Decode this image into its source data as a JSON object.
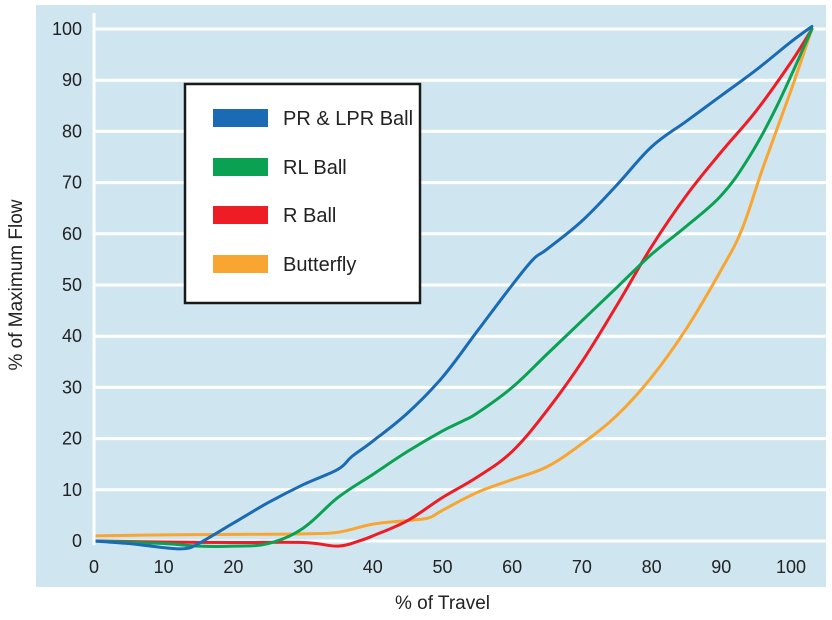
{
  "chart_data": {
    "type": "line",
    "title": "",
    "xlabel": "% of Travel",
    "ylabel": "% of Maximum Flow",
    "xlim": [
      0,
      104
    ],
    "ylim": [
      0,
      100
    ],
    "x_ticks": [
      0,
      10,
      20,
      30,
      40,
      50,
      60,
      70,
      80,
      90,
      100
    ],
    "y_ticks": [
      0,
      10,
      20,
      30,
      40,
      50,
      60,
      70,
      80,
      90,
      100
    ],
    "grid": "horizontal",
    "background_color": "#cfe6f1",
    "legend_position": "upper-left",
    "series": [
      {
        "name": "PR & LPR Ball",
        "color": "#1a6bb3",
        "points": [
          [
            0,
            0
          ],
          [
            5,
            -0.5
          ],
          [
            10,
            -1.3
          ],
          [
            13,
            -1.5
          ],
          [
            15,
            -0.5
          ],
          [
            20,
            3.5
          ],
          [
            25,
            7.5
          ],
          [
            30,
            11
          ],
          [
            35,
            14
          ],
          [
            37,
            16.5
          ],
          [
            40,
            19.5
          ],
          [
            45,
            25
          ],
          [
            50,
            32
          ],
          [
            55,
            41
          ],
          [
            60,
            50
          ],
          [
            63,
            55
          ],
          [
            65,
            57
          ],
          [
            70,
            62.5
          ],
          [
            75,
            69.5
          ],
          [
            80,
            77
          ],
          [
            85,
            82
          ],
          [
            90,
            87
          ],
          [
            95,
            92
          ],
          [
            100,
            97.5
          ],
          [
            103,
            100.5
          ]
        ]
      },
      {
        "name": "RL Ball",
        "color": "#0aa152",
        "points": [
          [
            0,
            0
          ],
          [
            10,
            -0.5
          ],
          [
            15,
            -1
          ],
          [
            20,
            -1
          ],
          [
            25,
            -0.5
          ],
          [
            30,
            2.5
          ],
          [
            35,
            8.5
          ],
          [
            40,
            13
          ],
          [
            45,
            17.5
          ],
          [
            50,
            21.5
          ],
          [
            53,
            23.5
          ],
          [
            55,
            25
          ],
          [
            60,
            30
          ],
          [
            65,
            36.5
          ],
          [
            70,
            43
          ],
          [
            75,
            49.5
          ],
          [
            80,
            56
          ],
          [
            85,
            61.5
          ],
          [
            90,
            67.5
          ],
          [
            94,
            75
          ],
          [
            98,
            85
          ],
          [
            103,
            100
          ]
        ]
      },
      {
        "name": "R Ball",
        "color": "#ee1c25",
        "points": [
          [
            0,
            0
          ],
          [
            10,
            -0.2
          ],
          [
            20,
            -0.3
          ],
          [
            30,
            -0.3
          ],
          [
            35,
            -1
          ],
          [
            38,
            0
          ],
          [
            40,
            1
          ],
          [
            45,
            4
          ],
          [
            50,
            8.5
          ],
          [
            55,
            12.5
          ],
          [
            60,
            17.5
          ],
          [
            65,
            25.5
          ],
          [
            70,
            35
          ],
          [
            75,
            46
          ],
          [
            80,
            57.5
          ],
          [
            85,
            67.5
          ],
          [
            90,
            76
          ],
          [
            95,
            84
          ],
          [
            100,
            93.5
          ],
          [
            103,
            100
          ]
        ]
      },
      {
        "name": "Butterfly",
        "color": "#f9a531",
        "points": [
          [
            0,
            1
          ],
          [
            10,
            1.2
          ],
          [
            20,
            1.3
          ],
          [
            30,
            1.4
          ],
          [
            35,
            1.7
          ],
          [
            40,
            3.3
          ],
          [
            45,
            4
          ],
          [
            48,
            4.5
          ],
          [
            50,
            6
          ],
          [
            55,
            9.5
          ],
          [
            60,
            12
          ],
          [
            65,
            14.5
          ],
          [
            70,
            19
          ],
          [
            75,
            24.5
          ],
          [
            80,
            32
          ],
          [
            85,
            41.5
          ],
          [
            90,
            53
          ],
          [
            93,
            61
          ],
          [
            96,
            73
          ],
          [
            100,
            88
          ],
          [
            103,
            100
          ]
        ]
      }
    ]
  }
}
